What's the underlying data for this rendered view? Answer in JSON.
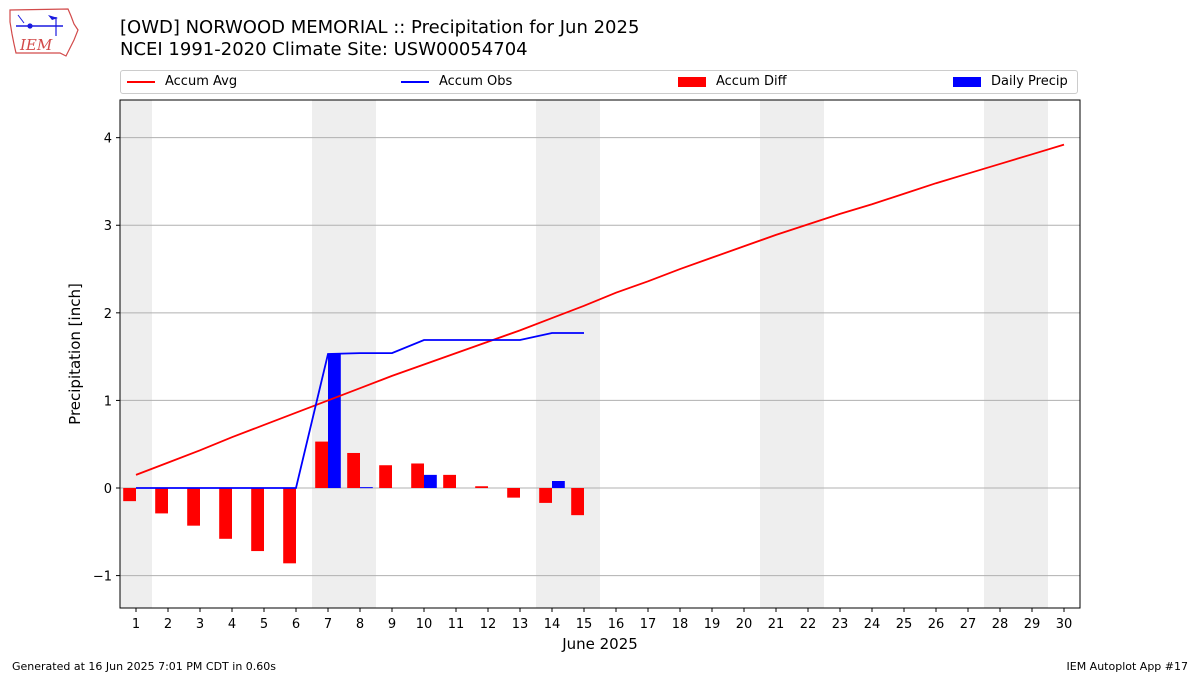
{
  "header": {
    "title_line1": "[OWD] NORWOOD MEMORIAL :: Precipitation for Jun 2025",
    "title_line2": "NCEI 1991-2020 Climate Site: USW00054704",
    "logo_text": "IEM"
  },
  "footer": {
    "left": "Generated at 16 Jun 2025 7:01 PM CDT in 0.60s",
    "right": "IEM Autoplot App #17"
  },
  "chart_data": {
    "type": "bar",
    "xlabel": "June 2025",
    "ylabel": "Precipitation [inch]",
    "xlim": [
      0.5,
      30.5
    ],
    "ylim": [
      -1.37,
      4.43
    ],
    "x_ticks": [
      1,
      2,
      3,
      4,
      5,
      6,
      7,
      8,
      9,
      10,
      11,
      12,
      13,
      14,
      15,
      16,
      17,
      18,
      19,
      20,
      21,
      22,
      23,
      24,
      25,
      26,
      27,
      28,
      29,
      30
    ],
    "y_ticks": [
      -1,
      0,
      1,
      2,
      3,
      4
    ],
    "y_tick_labels": [
      "−1",
      "0",
      "1",
      "2",
      "3",
      "4"
    ],
    "grid": "horizontal",
    "legend_position": "top",
    "weekend_shading": [
      [
        0.5,
        1.5
      ],
      [
        6.5,
        8.5
      ],
      [
        13.5,
        15.5
      ],
      [
        20.5,
        22.5
      ],
      [
        27.5,
        29.5
      ]
    ],
    "colors": {
      "accum_avg": "#ff0000",
      "accum_obs": "#0000ff",
      "accum_diff": "#ff0000",
      "daily_precip": "#0000ff",
      "weekend": "#eeeeee",
      "grid": "#b0b0b0"
    },
    "series": [
      {
        "name": "Accum Avg",
        "kind": "line",
        "x": [
          1,
          2,
          3,
          4,
          5,
          6,
          7,
          8,
          9,
          10,
          11,
          12,
          13,
          14,
          15,
          16,
          17,
          18,
          19,
          20,
          21,
          22,
          23,
          24,
          25,
          26,
          27,
          28,
          29,
          30
        ],
        "values": [
          0.15,
          0.29,
          0.43,
          0.58,
          0.72,
          0.86,
          1.0,
          1.14,
          1.28,
          1.41,
          1.54,
          1.67,
          1.8,
          1.94,
          2.08,
          2.23,
          2.36,
          2.5,
          2.63,
          2.76,
          2.89,
          3.01,
          3.13,
          3.24,
          3.36,
          3.48,
          3.59,
          3.7,
          3.81,
          3.92
        ]
      },
      {
        "name": "Accum Obs",
        "kind": "line",
        "x": [
          1,
          2,
          3,
          4,
          5,
          6,
          7,
          8,
          9,
          10,
          11,
          12,
          13,
          14,
          15
        ],
        "values": [
          0,
          0,
          0,
          0,
          0,
          0,
          1.53,
          1.54,
          1.54,
          1.69,
          1.69,
          1.69,
          1.69,
          1.77,
          1.77
        ]
      },
      {
        "name": "Accum Diff",
        "kind": "bar",
        "x": [
          1,
          2,
          3,
          4,
          5,
          6,
          7,
          8,
          9,
          10,
          11,
          12,
          13,
          14,
          15
        ],
        "values": [
          -0.15,
          -0.29,
          -0.43,
          -0.58,
          -0.72,
          -0.86,
          0.53,
          0.4,
          0.26,
          0.28,
          0.15,
          0.02,
          -0.11,
          -0.17,
          -0.31
        ]
      },
      {
        "name": "Daily Precip",
        "kind": "bar",
        "x": [
          1,
          2,
          3,
          4,
          5,
          6,
          7,
          8,
          9,
          10,
          11,
          12,
          13,
          14,
          15
        ],
        "values": [
          0,
          0,
          0,
          0,
          0,
          0,
          1.53,
          0.01,
          0,
          0.15,
          0,
          0,
          0,
          0.08,
          0
        ]
      }
    ]
  }
}
